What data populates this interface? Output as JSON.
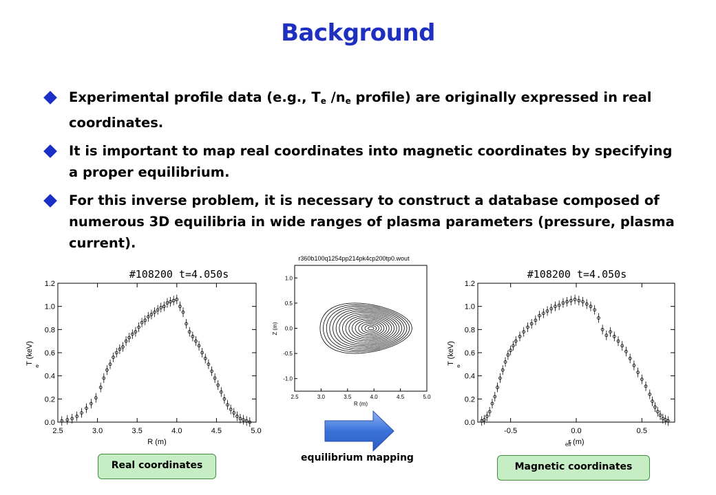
{
  "slide": {
    "title": "Background",
    "bullets": [
      {
        "pre": "Experimental profile data (e.g., T",
        "sub1": "e",
        "mid": " /n",
        "sub2": "e",
        "post": " profile) are originally expressed in real coordinates."
      },
      {
        "text": "It is important to map real coordinates into magnetic coordinates by specifying a proper equilibrium."
      },
      {
        "text": "For this inverse problem, it is necessary to construct a database composed of numerous 3D equilibria in wide ranges of plasma parameters (pressure, plasma current)."
      }
    ],
    "labels": {
      "real": "Real coordinates",
      "magnetic": "Magnetic coordinates",
      "mapping": "equilibrium mapping"
    },
    "colors": {
      "title": "#1f2fbf",
      "bullet_marker": "#1a2fc8",
      "arrow": "#3b72d9",
      "label_fill": "#c6edc4"
    },
    "arrow_icon": "right-arrow-icon"
  },
  "chart_data": [
    {
      "type": "scatter",
      "title": "#108200  t=4.050s",
      "xlabel": "R  (m)",
      "ylabel": "T  (keV)",
      "ylabel_sub": "e",
      "xlim": [
        2.5,
        5.0
      ],
      "ylim": [
        0.0,
        1.2
      ],
      "xticks": [
        "2.5",
        "3.0",
        "3.5",
        "4.0",
        "4.5",
        "5.0"
      ],
      "yticks": [
        "0.0",
        "0.2",
        "0.4",
        "0.6",
        "0.8",
        "1.0",
        "1.2"
      ],
      "x": [
        2.55,
        2.62,
        2.68,
        2.74,
        2.8,
        2.86,
        2.92,
        2.98,
        3.04,
        3.08,
        3.12,
        3.16,
        3.2,
        3.24,
        3.28,
        3.32,
        3.36,
        3.4,
        3.44,
        3.48,
        3.52,
        3.56,
        3.6,
        3.64,
        3.68,
        3.72,
        3.76,
        3.8,
        3.84,
        3.88,
        3.92,
        3.96,
        4.0,
        4.04,
        4.08,
        4.12,
        4.16,
        4.2,
        4.24,
        4.28,
        4.32,
        4.36,
        4.4,
        4.44,
        4.48,
        4.52,
        4.56,
        4.6,
        4.64,
        4.68,
        4.72,
        4.76,
        4.8,
        4.84,
        4.88,
        4.92
      ],
      "y": [
        0.01,
        0.02,
        0.03,
        0.05,
        0.08,
        0.12,
        0.16,
        0.21,
        0.3,
        0.38,
        0.45,
        0.5,
        0.56,
        0.6,
        0.63,
        0.65,
        0.7,
        0.73,
        0.76,
        0.78,
        0.82,
        0.86,
        0.88,
        0.91,
        0.93,
        0.95,
        0.97,
        0.99,
        1.0,
        1.03,
        1.04,
        1.05,
        1.06,
        1.0,
        0.95,
        0.85,
        0.78,
        0.74,
        0.7,
        0.66,
        0.6,
        0.55,
        0.5,
        0.44,
        0.38,
        0.32,
        0.26,
        0.2,
        0.15,
        0.11,
        0.08,
        0.05,
        0.03,
        0.02,
        0.01,
        0.0
      ]
    },
    {
      "type": "line",
      "title": "r360b100q1254pp214pk4cp200tp0.wout",
      "xlabel": "R (m)",
      "ylabel": "Z (m)",
      "xlim": [
        2.5,
        5.0
      ],
      "ylim": [
        -1.25,
        1.25
      ],
      "xticks": [
        "2.5",
        "3.0",
        "3.5",
        "4.0",
        "4.5",
        "5.0"
      ],
      "yticks": [
        "1.0",
        "0.5",
        "0.0",
        "-0.5",
        "-1.0"
      ],
      "contours": {
        "axis_R": 3.95,
        "axis_Z": 0.0,
        "outer_R_min": 2.98,
        "outer_R_max": 4.72,
        "outer_half_height": 0.5,
        "surfaces": 16
      }
    },
    {
      "type": "scatter",
      "title": "#108200  t=4.050s",
      "xlabel": "r    (m)",
      "xlabel_sub": "eff",
      "ylabel": "T  (keV)",
      "ylabel_sub": "e",
      "xlim": [
        -0.75,
        0.75
      ],
      "ylim": [
        0.0,
        1.2
      ],
      "xticks": [
        "-0.5",
        "0.0",
        "0.5"
      ],
      "yticks": [
        "0.0",
        "0.2",
        "0.4",
        "0.6",
        "0.8",
        "1.0",
        "1.2"
      ],
      "x": [
        -0.72,
        -0.7,
        -0.68,
        -0.66,
        -0.64,
        -0.62,
        -0.6,
        -0.58,
        -0.56,
        -0.54,
        -0.52,
        -0.5,
        -0.48,
        -0.46,
        -0.43,
        -0.4,
        -0.37,
        -0.34,
        -0.31,
        -0.28,
        -0.25,
        -0.22,
        -0.19,
        -0.16,
        -0.13,
        -0.1,
        -0.07,
        -0.04,
        -0.01,
        0.02,
        0.05,
        0.08,
        0.11,
        0.14,
        0.17,
        0.2,
        0.23,
        0.26,
        0.29,
        0.32,
        0.35,
        0.38,
        0.41,
        0.44,
        0.47,
        0.5,
        0.53,
        0.56,
        0.58,
        0.6,
        0.62,
        0.64,
        0.66,
        0.68,
        0.7
      ],
      "y": [
        0.01,
        0.02,
        0.05,
        0.09,
        0.16,
        0.22,
        0.3,
        0.38,
        0.45,
        0.52,
        0.58,
        0.62,
        0.66,
        0.7,
        0.74,
        0.78,
        0.82,
        0.85,
        0.88,
        0.92,
        0.94,
        0.96,
        0.98,
        1.0,
        1.01,
        1.03,
        1.04,
        1.05,
        1.06,
        1.05,
        1.04,
        1.02,
        1.0,
        0.97,
        0.9,
        0.8,
        0.75,
        0.78,
        0.74,
        0.7,
        0.66,
        0.61,
        0.55,
        0.49,
        0.43,
        0.37,
        0.31,
        0.24,
        0.18,
        0.13,
        0.09,
        0.06,
        0.03,
        0.02,
        0.01
      ]
    }
  ]
}
